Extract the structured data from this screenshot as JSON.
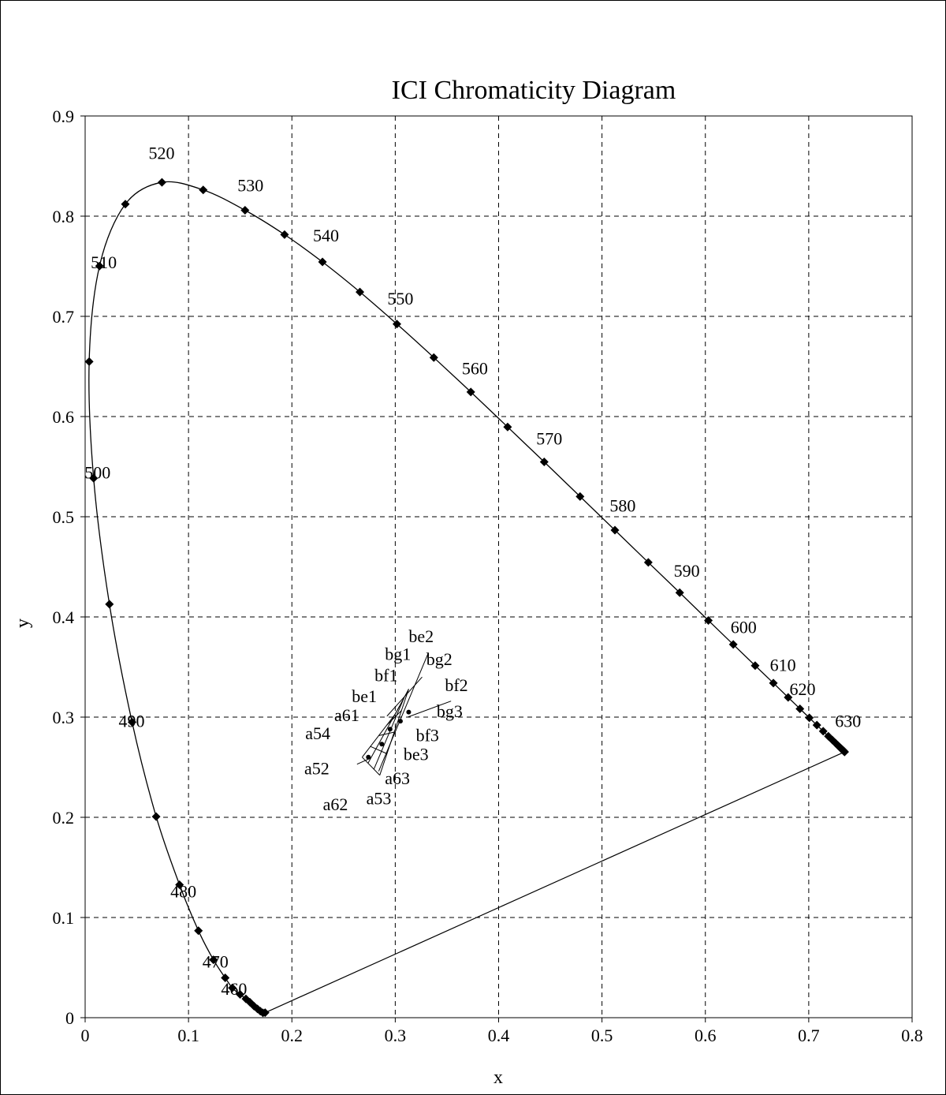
{
  "chart_data": {
    "type": "scatter",
    "title": "ICI Chromaticity Diagram",
    "xlabel": "x",
    "ylabel": "y",
    "xlim": [
      0,
      0.8
    ],
    "ylim": [
      0,
      0.9
    ],
    "x_ticks": [
      "0",
      "0.1",
      "0.2",
      "0.3",
      "0.4",
      "0.5",
      "0.6",
      "0.7",
      "0.8"
    ],
    "y_ticks": [
      "0",
      "0.1",
      "0.2",
      "0.3",
      "0.4",
      "0.5",
      "0.6",
      "0.7",
      "0.8",
      "0.9"
    ],
    "grid": true,
    "spectral_locus": [
      [
        0.1741,
        0.005
      ],
      [
        0.172,
        0.0048
      ],
      [
        0.1695,
        0.0065
      ],
      [
        0.1667,
        0.0088
      ],
      [
        0.1634,
        0.0115
      ],
      [
        0.1594,
        0.0155
      ],
      [
        0.1555,
        0.0188
      ],
      [
        0.1499,
        0.0232
      ],
      [
        0.1424,
        0.0297
      ],
      [
        0.1355,
        0.0398
      ],
      [
        0.1241,
        0.0578
      ],
      [
        0.1096,
        0.0868
      ],
      [
        0.0913,
        0.1327
      ],
      [
        0.0687,
        0.2007
      ],
      [
        0.0454,
        0.295
      ],
      [
        0.0235,
        0.4127
      ],
      [
        0.0082,
        0.5384
      ],
      [
        0.0039,
        0.6548
      ],
      [
        0.0139,
        0.7502
      ],
      [
        0.0389,
        0.812
      ],
      [
        0.0743,
        0.8338
      ],
      [
        0.1142,
        0.8262
      ],
      [
        0.1547,
        0.8059
      ],
      [
        0.1929,
        0.7816
      ],
      [
        0.2296,
        0.7543
      ],
      [
        0.2658,
        0.7243
      ],
      [
        0.3016,
        0.6923
      ],
      [
        0.3373,
        0.6589
      ],
      [
        0.3731,
        0.6245
      ],
      [
        0.4087,
        0.5896
      ],
      [
        0.4441,
        0.5547
      ],
      [
        0.4788,
        0.5202
      ],
      [
        0.5125,
        0.4866
      ],
      [
        0.5448,
        0.4544
      ],
      [
        0.5752,
        0.4242
      ],
      [
        0.6029,
        0.3965
      ],
      [
        0.627,
        0.3725
      ],
      [
        0.6482,
        0.3514
      ],
      [
        0.6658,
        0.334
      ],
      [
        0.6801,
        0.3197
      ],
      [
        0.6915,
        0.3083
      ],
      [
        0.7006,
        0.2993
      ],
      [
        0.7079,
        0.292
      ],
      [
        0.714,
        0.2859
      ],
      [
        0.719,
        0.2809
      ],
      [
        0.723,
        0.277
      ],
      [
        0.726,
        0.274
      ],
      [
        0.7283,
        0.2717
      ],
      [
        0.73,
        0.27
      ],
      [
        0.7311,
        0.2689
      ],
      [
        0.732,
        0.268
      ],
      [
        0.7327,
        0.2673
      ],
      [
        0.7334,
        0.2666
      ],
      [
        0.734,
        0.266
      ],
      [
        0.7344,
        0.2656
      ],
      [
        0.7346,
        0.2654
      ],
      [
        0.7347,
        0.2653
      ]
    ],
    "wavelength_labels": [
      {
        "text": "460",
        "x": 0.144,
        "y": 0.023
      },
      {
        "text": "470",
        "x": 0.126,
        "y": 0.05
      },
      {
        "text": "480",
        "x": 0.095,
        "y": 0.12
      },
      {
        "text": "490",
        "x": 0.045,
        "y": 0.29
      },
      {
        "text": "500",
        "x": 0.012,
        "y": 0.538
      },
      {
        "text": "510",
        "x": 0.018,
        "y": 0.748
      },
      {
        "text": "520",
        "x": 0.074,
        "y": 0.857
      },
      {
        "text": "530",
        "x": 0.16,
        "y": 0.825
      },
      {
        "text": "540",
        "x": 0.233,
        "y": 0.775
      },
      {
        "text": "550",
        "x": 0.305,
        "y": 0.712
      },
      {
        "text": "560",
        "x": 0.377,
        "y": 0.642
      },
      {
        "text": "570",
        "x": 0.449,
        "y": 0.572
      },
      {
        "text": "580",
        "x": 0.52,
        "y": 0.505
      },
      {
        "text": "590",
        "x": 0.582,
        "y": 0.44
      },
      {
        "text": "600",
        "x": 0.637,
        "y": 0.384
      },
      {
        "text": "610",
        "x": 0.675,
        "y": 0.346
      },
      {
        "text": "620",
        "x": 0.694,
        "y": 0.322
      },
      {
        "text": "630",
        "x": 0.738,
        "y": 0.29
      }
    ],
    "samples": [
      {
        "name": "a52",
        "x": 0.274,
        "y": 0.26
      },
      {
        "name": "a62",
        "x": 0.287,
        "y": 0.273
      },
      {
        "name": "be1",
        "x": 0.295,
        "y": 0.288
      },
      {
        "name": "bf1",
        "x": 0.305,
        "y": 0.296
      },
      {
        "name": "bg1",
        "x": 0.313,
        "y": 0.305
      }
    ],
    "ellipse_grid": {
      "corners": [
        [
          0.268,
          0.26
        ],
        [
          0.3,
          0.303
        ],
        [
          0.313,
          0.328
        ],
        [
          0.285,
          0.242
        ]
      ],
      "rows": 4,
      "cols": 3
    },
    "sample_labels": [
      {
        "text": "be2",
        "x": 0.313,
        "y": 0.375
      },
      {
        "text": "bg1",
        "x": 0.29,
        "y": 0.357
      },
      {
        "text": "bg2",
        "x": 0.33,
        "y": 0.352
      },
      {
        "text": "bf1",
        "x": 0.28,
        "y": 0.336
      },
      {
        "text": "bf2",
        "x": 0.348,
        "y": 0.326
      },
      {
        "text": "be1",
        "x": 0.258,
        "y": 0.315
      },
      {
        "text": "a61",
        "x": 0.241,
        "y": 0.296
      },
      {
        "text": "bg3",
        "x": 0.34,
        "y": 0.3
      },
      {
        "text": "a54",
        "x": 0.213,
        "y": 0.278
      },
      {
        "text": "bf3",
        "x": 0.32,
        "y": 0.276
      },
      {
        "text": "be3",
        "x": 0.308,
        "y": 0.257
      },
      {
        "text": "a52",
        "x": 0.212,
        "y": 0.243
      },
      {
        "text": "a63",
        "x": 0.29,
        "y": 0.233
      },
      {
        "text": "a53",
        "x": 0.272,
        "y": 0.213
      },
      {
        "text": "a62",
        "x": 0.23,
        "y": 0.207
      }
    ],
    "leader_lines": [
      [
        [
          0.332,
          0.364
        ],
        [
          0.284,
          0.246
        ]
      ],
      [
        [
          0.326,
          0.34
        ],
        [
          0.292,
          0.301
        ]
      ],
      [
        [
          0.263,
          0.253
        ],
        [
          0.276,
          0.259
        ]
      ],
      [
        [
          0.354,
          0.316
        ],
        [
          0.312,
          0.3
        ]
      ]
    ]
  }
}
